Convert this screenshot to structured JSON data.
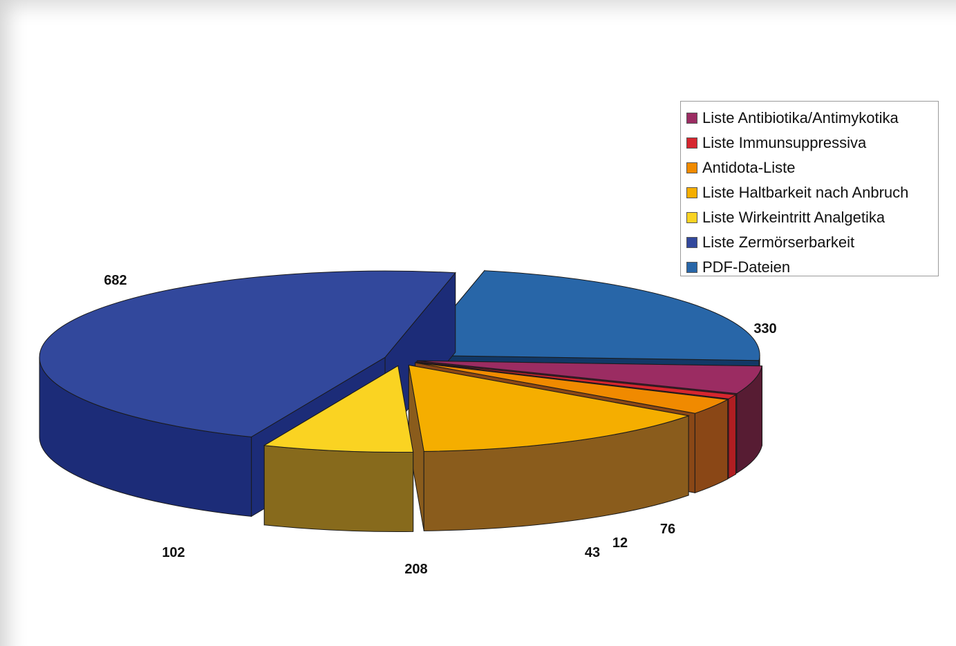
{
  "chart_data": {
    "type": "pie",
    "style": "3d-exploded",
    "title": "",
    "legend_position": "top-right",
    "slices": [
      {
        "label": "Liste Antibiotika/Antimykotika",
        "value": 76,
        "color": "#9b2c62",
        "side_color": "#571c33"
      },
      {
        "label": "Liste Immunsuppressiva",
        "value": 12,
        "color": "#d6262f",
        "side_color": "#b01e22"
      },
      {
        "label": "Antidota-Liste",
        "value": 43,
        "color": "#f08a00",
        "side_color": "#8a4716"
      },
      {
        "label": "Liste Haltbarkeit nach Anbruch",
        "value": 208,
        "color": "#f5ae00",
        "side_color": "#8a5c1c"
      },
      {
        "label": "Liste Wirkeintritt Analgetika",
        "value": 102,
        "color": "#fad322",
        "side_color": "#876a1c"
      },
      {
        "label": "Liste Zermörserbarkeit",
        "value": 682,
        "color": "#32489c",
        "side_color": "#1c2c78"
      },
      {
        "label": "PDF-Dateien",
        "value": 330,
        "color": "#2866a8",
        "side_color": "#123866"
      }
    ]
  }
}
